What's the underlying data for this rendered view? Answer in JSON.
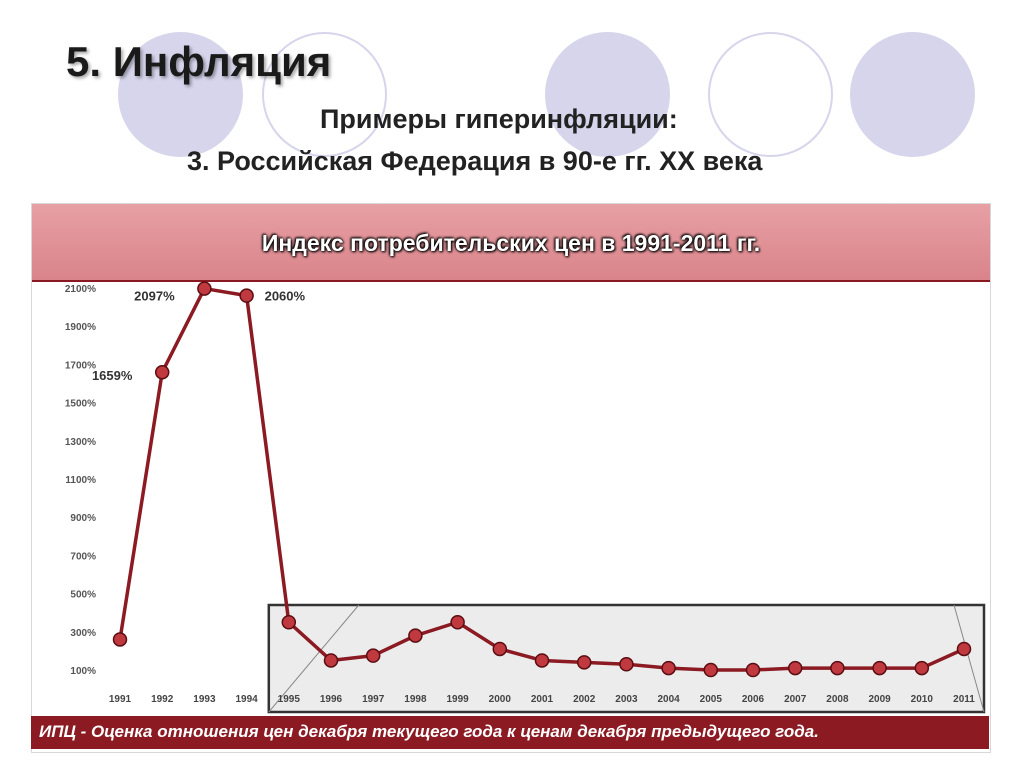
{
  "slide": {
    "title": "5. Инфляция",
    "subtitle_line1": "Примеры гиперинфляции:",
    "subtitle_line2": "3. Российская Федерация в 90-е гг. ХХ века"
  },
  "colors": {
    "header_band": "#dd8c92",
    "footer_band": "#8b1a22",
    "series_line": "#8b1a22",
    "marker_fill": "#c0393f",
    "decor_circles": "#d6d5ec",
    "highlight_box": "#e6e6e6"
  },
  "chart_data": {
    "type": "line",
    "title": "Индекс потребительских цен в 1991-2011 гг.",
    "note": "ИПЦ - Оценка отношения цен декабря текущего года к ценам декабря предыдущего года.",
    "ylim": [
      100,
      2100
    ],
    "y_ticks": [
      "100%",
      "300%",
      "500%",
      "700%",
      "900%",
      "1100%",
      "1300%",
      "1500%",
      "1700%",
      "1900%",
      "2100%"
    ],
    "categories": [
      "1991",
      "1992",
      "1993",
      "1994",
      "1995",
      "1996",
      "1997",
      "1998",
      "1999",
      "2000",
      "2001",
      "2002",
      "2003",
      "2004",
      "2005",
      "2006",
      "2007",
      "2008",
      "2009",
      "2010",
      "2011"
    ],
    "series": [
      {
        "values": [
          260,
          1659,
          2097,
          2060,
          350,
          150,
          175,
          280,
          350,
          210,
          150,
          140,
          130,
          110,
          100,
          100,
          110,
          110,
          110,
          110,
          210
        ]
      }
    ],
    "data_labels": [
      {
        "index": 1,
        "text": "1659%"
      },
      {
        "index": 2,
        "text": "2097%"
      },
      {
        "index": 3,
        "text": "2060%"
      }
    ],
    "grid": false,
    "highlight_range": [
      "1995",
      "2011"
    ]
  }
}
